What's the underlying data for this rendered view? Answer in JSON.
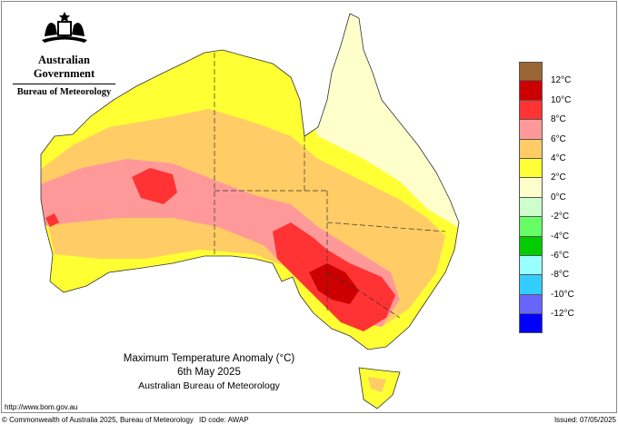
{
  "header": {
    "gov": "Australian Government",
    "bureau": "Bureau of Meteorology"
  },
  "map": {
    "title": "Maximum Temperature Anomaly (°C)",
    "date": "6th May 2025",
    "source": "Australian Bureau of Meteorology",
    "region": "Australia"
  },
  "legend": {
    "colors": [
      "#996633",
      "#cc0000",
      "#ff3333",
      "#ff9999",
      "#ffcc66",
      "#ffff33",
      "#ffffcc",
      "#ccffcc",
      "#66ff66",
      "#00cc00",
      "#99ffff",
      "#33ccff",
      "#6666ff",
      "#0000ff"
    ],
    "labels": [
      "12°C",
      "10°C",
      "8°C",
      "6°C",
      "4°C",
      "2°C",
      "0°C",
      "-2°C",
      "-4°C",
      "-6°C",
      "-8°C",
      "-10°C",
      "-12°C"
    ]
  },
  "footer": {
    "url": "http://www.bom.gov.au",
    "copyright": "© Commonwealth of Australia 2025, Bureau of Meteorology",
    "id_code": "ID code: AWAP",
    "issued": "Issued: 07/05/2025"
  }
}
